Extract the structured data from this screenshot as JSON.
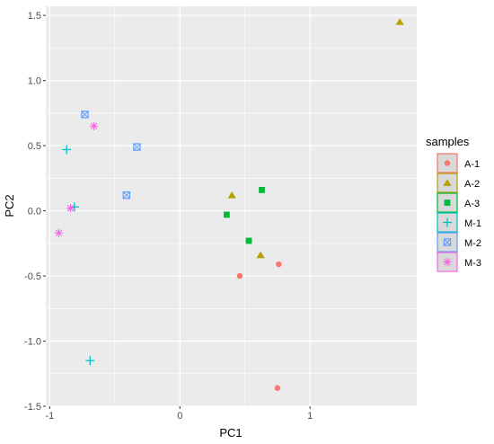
{
  "chart_data": {
    "type": "scatter",
    "xlabel": "PC1",
    "ylabel": "PC2",
    "xlim": [
      -1.03,
      1.82
    ],
    "ylim": [
      -1.5,
      1.57
    ],
    "xticks": [
      -1,
      0,
      1
    ],
    "yticks": [
      1.5,
      1.0,
      0.5,
      0.0,
      -0.5,
      -1.0,
      -1.5
    ],
    "xtick_labels": [
      "-1",
      "0",
      "1"
    ],
    "ytick_labels": [
      "1.5",
      "1.0",
      "0.5",
      "0.0",
      "-0.5",
      "-1.0",
      "-1.5"
    ],
    "grid": true,
    "panel_color": "#ebebeb",
    "legend_title": "samples",
    "legend_position": "right",
    "series": [
      {
        "name": "A-1",
        "shape": "circle",
        "color": "#f8766d",
        "points": [
          [
            0.76,
            -0.41
          ],
          [
            0.46,
            -0.5
          ],
          [
            0.75,
            -1.36
          ]
        ]
      },
      {
        "name": "A-2",
        "shape": "triangle",
        "color": "#b79f00",
        "points": [
          [
            1.69,
            1.45
          ],
          [
            0.4,
            0.12
          ],
          [
            0.62,
            -0.34
          ]
        ]
      },
      {
        "name": "A-3",
        "shape": "square",
        "color": "#00ba38",
        "points": [
          [
            0.63,
            0.16
          ],
          [
            0.36,
            -0.03
          ],
          [
            0.53,
            -0.23
          ]
        ]
      },
      {
        "name": "M-1",
        "shape": "plus",
        "color": "#00bfc4",
        "points": [
          [
            -0.87,
            0.47
          ],
          [
            -0.81,
            0.03
          ],
          [
            -0.69,
            -1.15
          ]
        ]
      },
      {
        "name": "M-2",
        "shape": "squarecross",
        "color": "#619cff",
        "points": [
          [
            -0.73,
            0.74
          ],
          [
            -0.33,
            0.49
          ],
          [
            -0.41,
            0.12
          ]
        ]
      },
      {
        "name": "M-3",
        "shape": "asterisk",
        "color": "#f564e3",
        "points": [
          [
            -0.66,
            0.65
          ],
          [
            -0.84,
            0.02
          ],
          [
            -0.93,
            -0.17
          ]
        ]
      }
    ]
  }
}
